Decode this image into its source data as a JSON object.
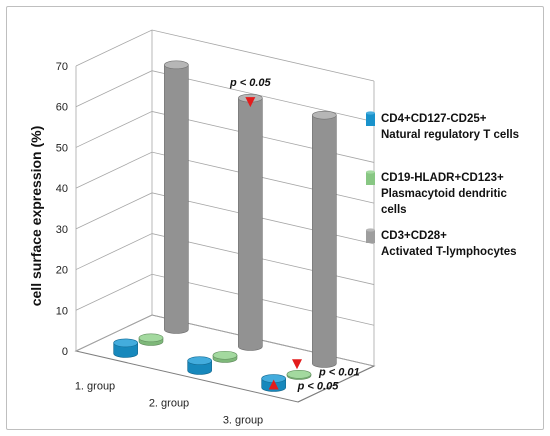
{
  "chart_data": {
    "type": "bar",
    "style": "3d-cylinder",
    "ylabel": "cell surface expression (%)",
    "xlabel": "",
    "title": "",
    "ylim": [
      0,
      70
    ],
    "yticks": [
      0,
      10,
      20,
      30,
      40,
      50,
      60,
      70
    ],
    "grid": true,
    "legend_position": "right",
    "categories": [
      "1.  group",
      "2. group",
      "3. group"
    ],
    "series": [
      {
        "name": "CD4+CD127-CD25+ Natural regulatory T cells",
        "legend_lines": [
          "CD4+CD127-CD25+",
          "Natural regulatory T cells"
        ],
        "color": "#1a9ad6",
        "values": [
          2.6,
          2.4,
          2.2
        ]
      },
      {
        "name": "CD19-HLADR+CD123+ Plasmacytoid dendritic cells",
        "legend_lines": [
          "CD19-HLADR+CD123+",
          "Plasmacytoid dendritic",
          "cells"
        ],
        "color": "#8fd18a",
        "values": [
          0.9,
          0.8,
          0.3
        ]
      },
      {
        "name": "CD3+CD28+ Activated T-lymphocytes",
        "legend_lines": [
          "CD3+CD28+",
          "Activated T-lymphocytes"
        ],
        "color": "#a6a6a6",
        "values": [
          65,
          61,
          61
        ]
      }
    ],
    "annotations": [
      {
        "text": "p < 0.05",
        "category": "2. group",
        "series": "CD3+CD28+ Activated T-lymphocytes",
        "marker": "down-triangle",
        "color": "#e31b1b"
      },
      {
        "text": "p < 0.01",
        "category": "3. group",
        "series": "CD19-HLADR+CD123+ Plasmacytoid dendritic cells",
        "marker": "down-triangle",
        "color": "#e31b1b"
      },
      {
        "text": "p < 0.05",
        "category": "3. group",
        "series": "CD4+CD127-CD25+ Natural regulatory T cells",
        "marker": "up-triangle",
        "color": "#e31b1b"
      }
    ]
  }
}
